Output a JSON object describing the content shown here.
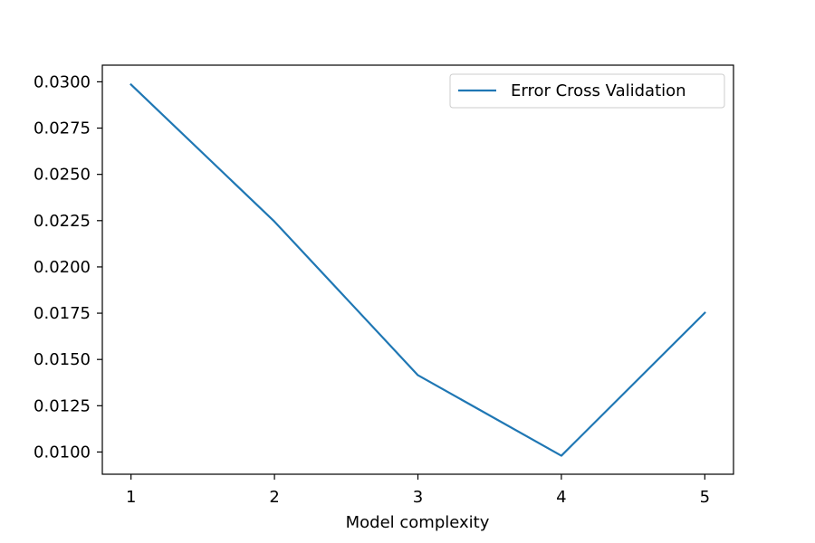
{
  "chart_data": {
    "type": "line",
    "title": "",
    "xlabel": "Model complexity",
    "ylabel": "",
    "x": [
      1,
      2,
      3,
      4,
      5
    ],
    "series": [
      {
        "name": "Error Cross Validation",
        "color": "#1f77b4",
        "values": [
          0.02985,
          0.02245,
          0.01415,
          0.0098,
          0.01752
        ]
      }
    ],
    "xlim": [
      0.8,
      5.2
    ],
    "ylim": [
      0.0088,
      0.0309
    ],
    "xticks": [
      1,
      2,
      3,
      4,
      5
    ],
    "xtick_labels": [
      "1",
      "2",
      "3",
      "4",
      "5"
    ],
    "yticks": [
      0.01,
      0.0125,
      0.015,
      0.0175,
      0.02,
      0.0225,
      0.025,
      0.0275,
      0.03
    ],
    "ytick_labels": [
      "0.0100",
      "0.0125",
      "0.0150",
      "0.0175",
      "0.0200",
      "0.0225",
      "0.0250",
      "0.0275",
      "0.0300"
    ],
    "grid": false,
    "legend_position": "top-right"
  }
}
